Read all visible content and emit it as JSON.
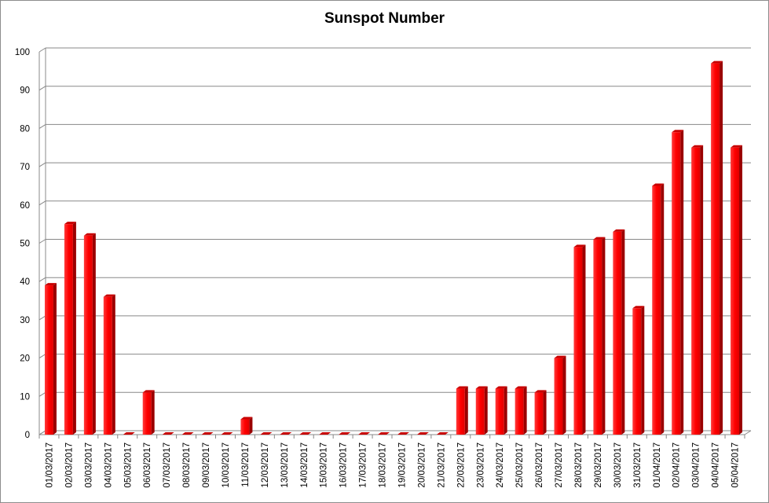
{
  "chart_data": {
    "type": "bar",
    "title": "Sunspot Number",
    "xlabel": "",
    "ylabel": "",
    "ylim": [
      0,
      100
    ],
    "yticks": [
      0,
      10,
      20,
      30,
      40,
      50,
      60,
      70,
      80,
      90,
      100
    ],
    "grid": true,
    "legend": "none",
    "bar_color": "#ff0000",
    "categories": [
      "01/03/2017",
      "02/03/2017",
      "03/03/2017",
      "04/03/2017",
      "05/03/2017",
      "06/03/2017",
      "07/03/2017",
      "08/03/2017",
      "09/03/2017",
      "10/03/2017",
      "11/03/2017",
      "12/03/2017",
      "13/03/2017",
      "14/03/2017",
      "15/03/2017",
      "16/03/2017",
      "17/03/2017",
      "18/03/2017",
      "19/03/2017",
      "20/03/2017",
      "21/03/2017",
      "22/03/2017",
      "23/03/2017",
      "24/03/2017",
      "25/03/2017",
      "26/03/2017",
      "27/03/2017",
      "28/03/2017",
      "29/03/2017",
      "30/03/2017",
      "31/03/2017",
      "01/04/2017",
      "02/04/2017",
      "03/04/2017",
      "04/04/2017",
      "05/04/2017"
    ],
    "values": [
      39,
      55,
      52,
      36,
      0,
      11,
      0,
      0,
      0,
      0,
      4,
      0,
      0,
      0,
      0,
      0,
      0,
      0,
      0,
      0,
      0,
      12,
      12,
      12,
      12,
      11,
      20,
      49,
      51,
      53,
      33,
      65,
      79,
      75,
      97,
      75
    ]
  }
}
